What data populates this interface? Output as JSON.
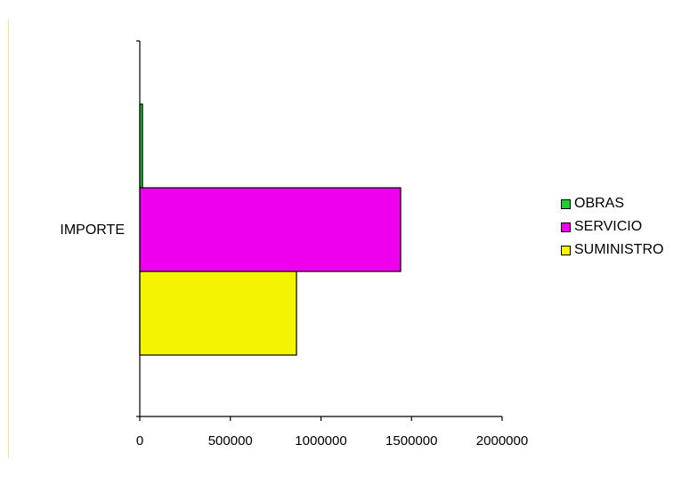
{
  "chart_data": {
    "type": "bar",
    "orientation": "horizontal",
    "categories": [
      "IMPORTE"
    ],
    "series": [
      {
        "name": "OBRAS",
        "values": [
          15000
        ],
        "color": "#1fcc33"
      },
      {
        "name": "SERVICIO",
        "values": [
          1440000
        ],
        "color": "#ee00ee"
      },
      {
        "name": "SUMINISTRO",
        "values": [
          865000
        ],
        "color": "#f4f400"
      }
    ],
    "xlim": [
      0,
      2000000
    ],
    "xticks": [
      "0",
      "500000",
      "1000000",
      "1500000",
      "2000000"
    ],
    "grid": false,
    "legend_position": "right"
  }
}
